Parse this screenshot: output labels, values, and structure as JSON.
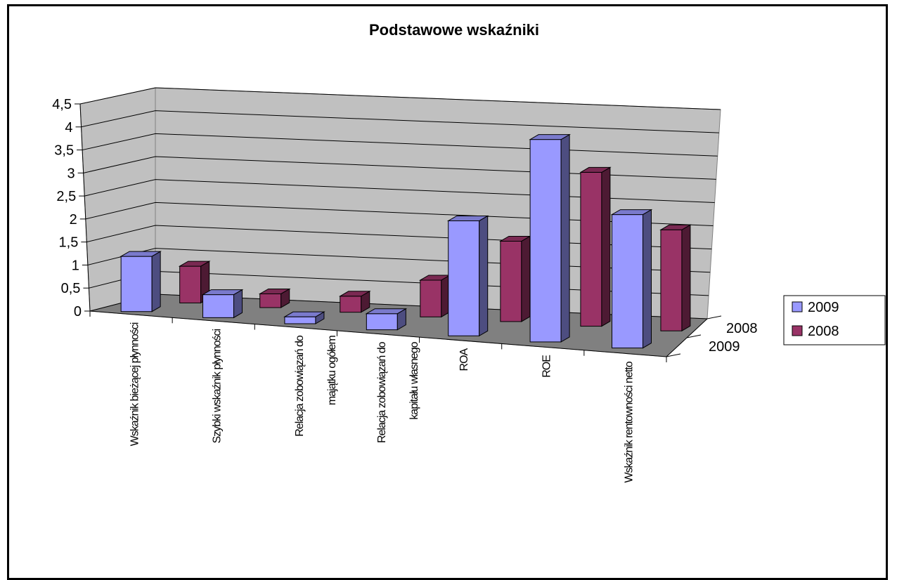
{
  "chart_data": {
    "type": "bar",
    "title": "Podstawowe wskaźniki",
    "categories": [
      [
        "Wskaźnik bieżącej płynności"
      ],
      [
        "Szybki wskaźnik płynności"
      ],
      [
        "Relacja zobowiązań do",
        "majątku ogółem"
      ],
      [
        "Relacja zobowiązań do",
        "kapitału własnego"
      ],
      [
        "ROA"
      ],
      [
        "ROE"
      ],
      [
        "Wskaźnik rentowności netto"
      ]
    ],
    "series": [
      {
        "name": "2009",
        "values": [
          1.2,
          0.5,
          0.15,
          0.35,
          2.5,
          4.4,
          2.9
        ],
        "color": "#9999ff"
      },
      {
        "name": "2008",
        "values": [
          0.8,
          0.3,
          0.35,
          0.8,
          1.75,
          3.35,
          2.2
        ],
        "color": "#993366"
      }
    ],
    "y_ticks": [
      "0",
      "0,5",
      "1",
      "1,5",
      "2",
      "2,5",
      "3",
      "3,5",
      "4",
      "4,5"
    ],
    "ylim": [
      0,
      4.5
    ],
    "depth_labels": [
      "2008",
      "2009"
    ],
    "legend_position": "right",
    "grid": true,
    "wall_color": "#c0c0c0",
    "floor_color": "#808080"
  }
}
